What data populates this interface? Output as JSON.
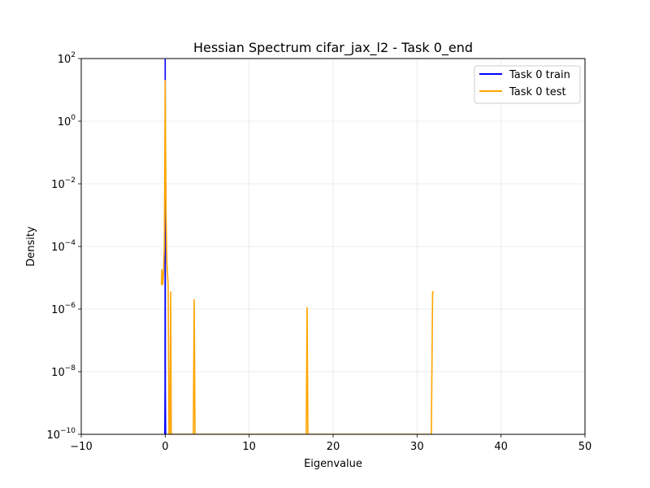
{
  "chart_data": {
    "type": "line",
    "title": "Hessian Spectrum cifar_jax_l2 - Task 0_end",
    "xlabel": "Eigenvalue",
    "ylabel": "Density",
    "xlim": [
      -10,
      50
    ],
    "ylim": [
      1e-10,
      100
    ],
    "yscale": "log",
    "grid": true,
    "legend_position": "top-right",
    "x_ticks": [
      "−10",
      "0",
      "10",
      "20",
      "30",
      "40",
      "50"
    ],
    "y_ticks": [
      {
        "base": "10",
        "exp": "2"
      },
      {
        "base": "10",
        "exp": "0"
      },
      {
        "base": "10",
        "exp": "−2"
      },
      {
        "base": "10",
        "exp": "−4"
      },
      {
        "base": "10",
        "exp": "−6"
      },
      {
        "base": "10",
        "exp": "−8"
      },
      {
        "base": "10",
        "exp": "−10"
      }
    ],
    "series": [
      {
        "name": "Task 0 train",
        "color": "#0000ff",
        "points": [
          [
            -0.05,
            1e-10
          ],
          [
            -0.02,
            3e-09
          ],
          [
            0.0,
            100
          ],
          [
            0.02,
            3e-09
          ],
          [
            0.05,
            1e-10
          ]
        ]
      },
      {
        "name": "Task 0 test",
        "color": "#ffa500",
        "points": [
          [
            -0.45,
            6e-06
          ],
          [
            -0.4,
            1.8e-05
          ],
          [
            -0.3,
            6e-06
          ],
          [
            -0.2,
            1.5e-05
          ],
          [
            -0.1,
            0.0001
          ],
          [
            0.0,
            20
          ],
          [
            0.1,
            0.001
          ],
          [
            0.2,
            3e-05
          ],
          [
            0.35,
            6e-06
          ],
          [
            0.45,
            1e-10
          ],
          [
            0.55,
            1e-10
          ],
          [
            0.65,
            3.5e-06
          ],
          [
            0.72,
            1e-10
          ],
          [
            3.35,
            1e-10
          ],
          [
            3.45,
            2e-06
          ],
          [
            3.55,
            1e-10
          ],
          [
            16.8,
            1e-10
          ],
          [
            16.9,
            1.1e-06
          ],
          [
            17.0,
            1e-10
          ],
          [
            31.7,
            1e-10
          ],
          [
            31.85,
            3.5e-06
          ],
          [
            32.0,
            3.5e-06
          ]
        ]
      }
    ]
  }
}
